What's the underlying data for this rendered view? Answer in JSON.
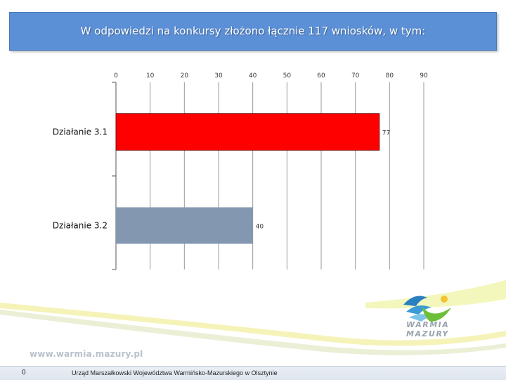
{
  "header": {
    "title": "W odpowiedzi na konkursy złożono łącznie 117 wniosków, w tym:"
  },
  "chart_data": {
    "type": "bar",
    "orientation": "horizontal",
    "title": "W odpowiedzi na konkursy złożono łącznie 117 wniosków, w tym:",
    "categories": [
      "Działanie 3.1",
      "Działanie 3.2"
    ],
    "values": [
      77,
      40
    ],
    "colors": [
      "#ff0000",
      "#8497b0"
    ],
    "xlim": [
      0,
      90
    ],
    "xticks": [
      0,
      10,
      20,
      30,
      40,
      50,
      60,
      70,
      80,
      90
    ],
    "x_axis_position": "top",
    "grid": true,
    "data_labels": true,
    "legend": "none"
  },
  "footer": {
    "website": "www.warmia.mazury.pl",
    "page_number": "0",
    "institution": "Urząd Marszałkowski Województwa Warmińsko-Mazurskiego w Olsztynie"
  },
  "logo": {
    "line1": "WARMIA",
    "line2": "MAZURY",
    "icon": "warmia-mazury-logo-icon"
  }
}
